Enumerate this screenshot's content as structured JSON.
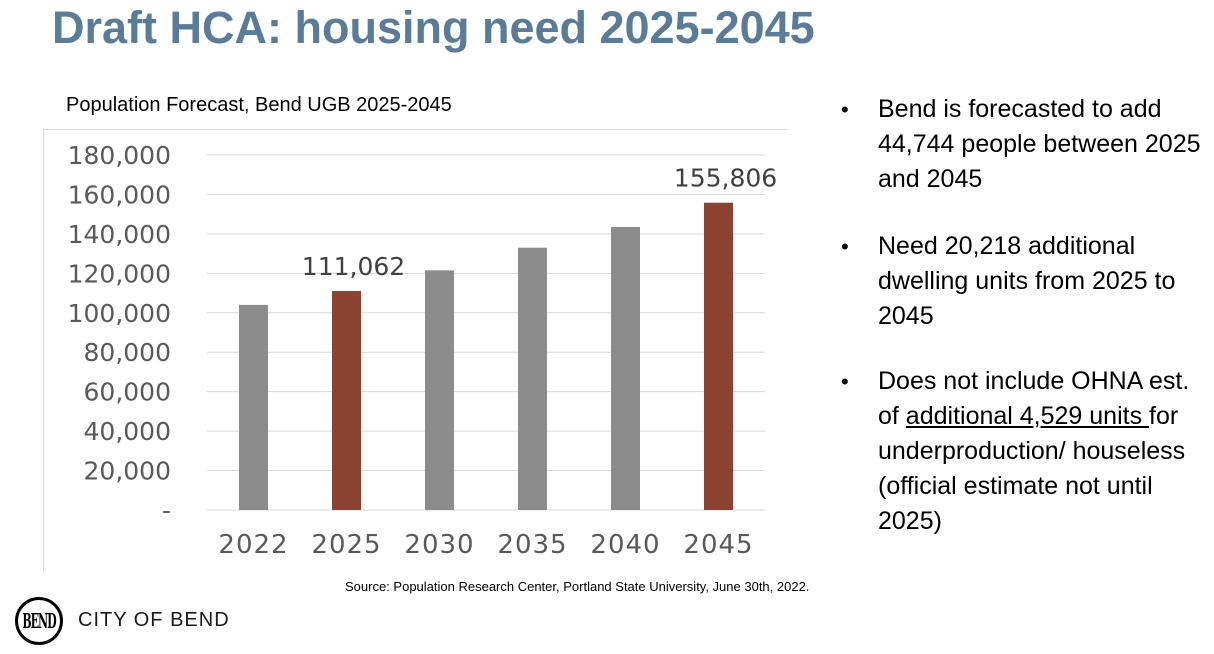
{
  "page": {
    "title": "Draft HCA:  housing need 2025-2045",
    "source": "Source: Population Research Center, Portland State University, June 30th, 2022.",
    "org_name": "CITY OF BEND",
    "logo_text": "BEND",
    "title_color": "#5b7c99"
  },
  "bullets": {
    "item1": "Bend is forecasted to add 44,744 people between 2025 and 2045",
    "item2": "Need 20,218 additional dwelling units from 2025 to 2045",
    "item3_pre": "Does not include OHNA est. of ",
    "item3_link": "additional 4,529 units ",
    "item3_post": "for underproduction/ houseless (official estimate not until 2025)"
  },
  "chart_data": {
    "type": "bar",
    "title": "Population Forecast, Bend UGB 2025-2045",
    "xlabel": "",
    "ylabel": "",
    "categories": [
      "2022",
      "2025",
      "2030",
      "2035",
      "2040",
      "2045"
    ],
    "values": [
      104000,
      111062,
      121500,
      133000,
      143500,
      155806
    ],
    "highlight": [
      false,
      true,
      false,
      false,
      false,
      true
    ],
    "data_labels": [
      null,
      "111,062",
      null,
      null,
      null,
      "155,806"
    ],
    "ylim": [
      0,
      180000
    ],
    "yticks": [
      0,
      20000,
      40000,
      60000,
      80000,
      100000,
      120000,
      140000,
      160000,
      180000
    ],
    "ytick_labels": [
      "-",
      "20,000",
      "40,000",
      "60,000",
      "80,000",
      "100,000",
      "120,000",
      "140,000",
      "160,000",
      "180,000"
    ],
    "grid": true,
    "colors": {
      "default": "#8c8c8c",
      "highlight": "#8b4231",
      "grid": "#d9d9d9"
    }
  }
}
